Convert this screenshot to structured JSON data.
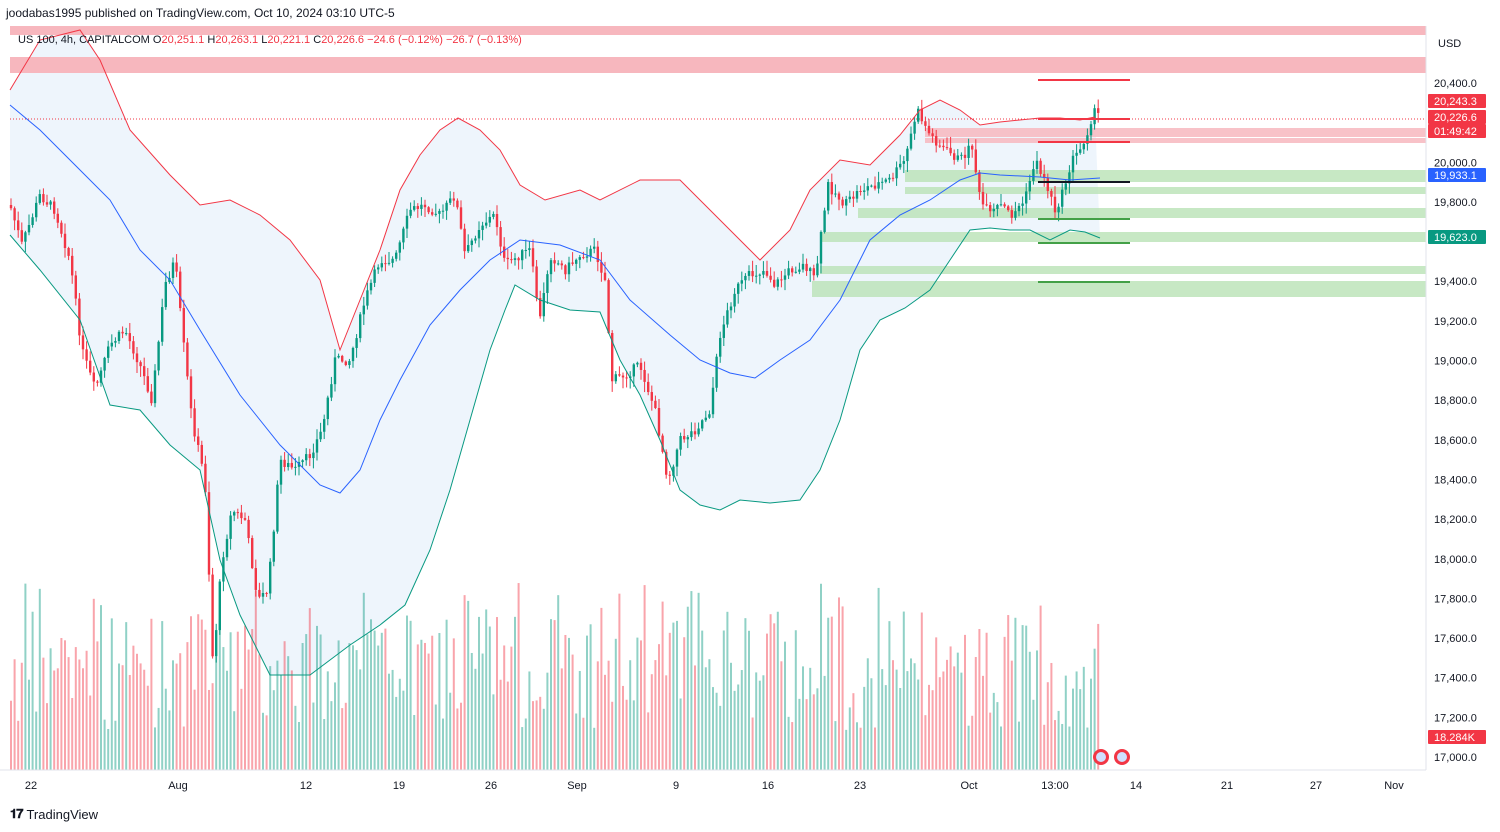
{
  "header": {
    "publisher_line": "joodabas1995 published on TradingView.com, Oct 10, 2024 03:10 UTC-5"
  },
  "legend": {
    "symbol": "US 100, 4h, CAPITALCOM",
    "open_label": "O",
    "open": "20,251.1",
    "high_label": "H",
    "high": "20,263.1",
    "low_label": "L",
    "low": "20,221.1",
    "close_label": "C",
    "close": "20,226.6",
    "change": "−24.6 (−0.12%)",
    "change2": "−26.7 (−0.13%)"
  },
  "price_axis": {
    "currency": "USD",
    "ticks": [
      "20,400.0",
      "20,000.0",
      "19,800.0",
      "19,400.0",
      "19,200.0",
      "19,000.0",
      "18,800.0",
      "18,600.0",
      "18,400.0",
      "18,200.0",
      "18,000.0",
      "17,800.0",
      "17,600.0",
      "17,400.0",
      "17,200.0",
      "17,000.0"
    ],
    "badges": [
      {
        "text": "20,243.3",
        "color": "#f23645"
      },
      {
        "text": "20,226.6",
        "color": "#f23645"
      },
      {
        "text": "01:49:42",
        "color": "#f23645"
      },
      {
        "text": "19,933.1",
        "color": "#2962ff"
      },
      {
        "text": "19,623.0",
        "color": "#089981"
      },
      {
        "text": "18.284K",
        "color": "#f23645"
      }
    ]
  },
  "time_axis": {
    "labels": [
      "22",
      "Aug",
      "12",
      "19",
      "26",
      "Sep",
      "9",
      "16",
      "23",
      "Oct",
      "13:00",
      "14",
      "21",
      "27",
      "Nov"
    ]
  },
  "colors": {
    "up": "#089981",
    "down": "#f23645",
    "upper_band": "#f23645",
    "lower_band": "#089981",
    "basis": "#2962ff",
    "band_fill": "#eaf2fb",
    "resistance_zone": "#f7b7be",
    "support_zone": "#b9e2b5"
  },
  "footer": {
    "brand": "TradingView"
  }
}
